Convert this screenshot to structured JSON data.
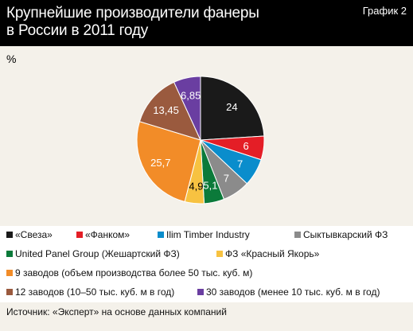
{
  "header": {
    "title_line1": "Крупнейшие производители фанеры",
    "title_line2": "в России в 2011 году",
    "chart_label": "График 2"
  },
  "unit": "%",
  "source": "Источник: «Эксперт» на основе данных компаний",
  "colors": {
    "header_bg": "#000000",
    "panel_bg": "#f4f1ea"
  },
  "chart_data": {
    "type": "pie",
    "title": "Крупнейшие производители фанеры в России в 2011 году",
    "unit": "%",
    "legend_position": "bottom",
    "categories": [
      "«Свеза»",
      "«Фанком»",
      "Ilim Timber Industry",
      "Сыктывкарский ФЗ",
      "United Panel Group (Жешартский ФЗ)",
      "ФЗ «Красный Якорь»",
      "9 заводов (объем производства более 50 тыс. куб. м)",
      "12 заводов (10–50 тыс. куб. м в год)",
      "30 заводов (менее 10 тыс. куб. м в год)"
    ],
    "values": [
      24,
      6,
      7,
      7,
      5.1,
      4.9,
      25.7,
      13.45,
      6.85
    ],
    "value_labels": [
      "24",
      "6",
      "7",
      "7",
      "5,1",
      "4,9",
      "25,7",
      "13,45",
      "6,85"
    ],
    "colors": [
      "#1a1a1a",
      "#e41e26",
      "#0a8dcc",
      "#8b8b8b",
      "#0b7a3a",
      "#f7c241",
      "#f28c28",
      "#9a5a3e",
      "#6a3ea1"
    ]
  }
}
